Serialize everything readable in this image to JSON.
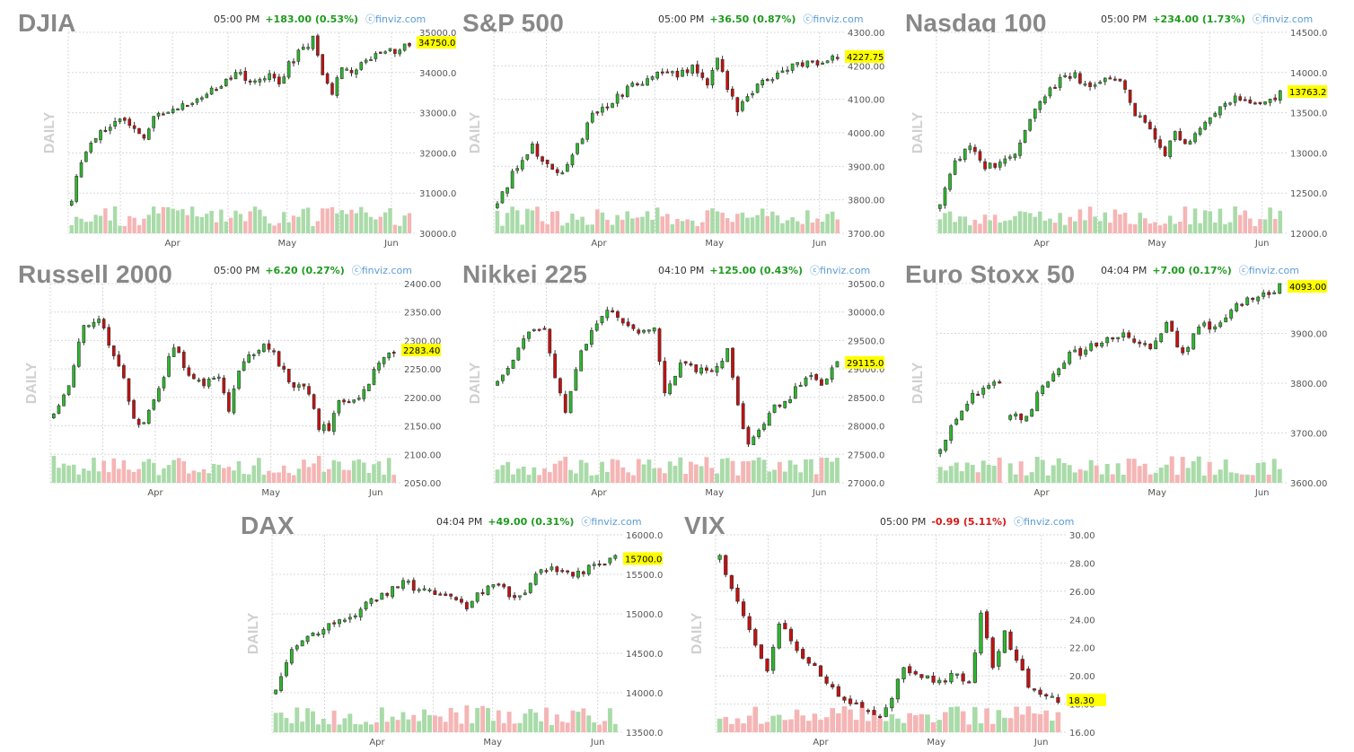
{
  "colors": {
    "up": "#2db82d",
    "down": "#c41010",
    "vol_up": "#a9dba9",
    "vol_down": "#f5b5b5",
    "last_price_bg": "#ffff00",
    "title": "#888888",
    "positive": "#1d9b1d",
    "negative": "#d71818",
    "source": "#5a9bd6"
  },
  "chart_data": [
    {
      "type": "candlestick",
      "title": "DJIA",
      "time": "05:00 PM",
      "change": "+183.00 (0.53%)",
      "direction": "up",
      "source": "finviz.com",
      "side_label": "DAILY",
      "last": "34750.0",
      "yticks": [
        "35000.0",
        "34000.0",
        "33000.0",
        "32000.0",
        "31000.0",
        "30000.0"
      ],
      "ylim": [
        30000,
        35000
      ],
      "xticks": [
        "Apr",
        "May",
        "Jun"
      ],
      "grid": true,
      "path": [
        [
          0,
          30900
        ],
        [
          2,
          31800
        ],
        [
          5,
          32400
        ],
        [
          9,
          32850
        ],
        [
          12,
          32650
        ],
        [
          15,
          32300
        ],
        [
          17,
          32900
        ],
        [
          20,
          33000
        ],
        [
          24,
          33200
        ],
        [
          28,
          33500
        ],
        [
          31,
          33650
        ],
        [
          34,
          34000
        ],
        [
          36,
          33900
        ],
        [
          38,
          33800
        ],
        [
          41,
          34000
        ],
        [
          43,
          33700
        ],
        [
          45,
          34200
        ],
        [
          48,
          34600
        ],
        [
          50,
          34850
        ],
        [
          52,
          34000
        ],
        [
          54,
          33500
        ],
        [
          56,
          34200
        ],
        [
          58,
          33900
        ],
        [
          60,
          34200
        ],
        [
          63,
          34450
        ],
        [
          66,
          34550
        ],
        [
          68,
          34500
        ],
        [
          70,
          34750
        ]
      ]
    },
    {
      "type": "candlestick",
      "title": "S&P 500",
      "time": "05:00 PM",
      "change": "+36.50 (0.87%)",
      "direction": "up",
      "source": "finviz.com",
      "side_label": "DAILY",
      "last": "4227.75",
      "yticks": [
        "4300.00",
        "4200.00",
        "4100.00",
        "4000.00",
        "3900.00",
        "3800.00",
        "3700.00"
      ],
      "ylim": [
        3700,
        4300
      ],
      "xticks": [
        "Apr",
        "May",
        "Jun"
      ],
      "grid": true,
      "path": [
        [
          0,
          3780
        ],
        [
          3,
          3880
        ],
        [
          7,
          3960
        ],
        [
          10,
          3900
        ],
        [
          13,
          3870
        ],
        [
          16,
          3960
        ],
        [
          19,
          4050
        ],
        [
          22,
          4080
        ],
        [
          26,
          4130
        ],
        [
          30,
          4160
        ],
        [
          33,
          4180
        ],
        [
          36,
          4170
        ],
        [
          39,
          4200
        ],
        [
          42,
          4150
        ],
        [
          44,
          4230
        ],
        [
          46,
          4140
        ],
        [
          48,
          4060
        ],
        [
          50,
          4110
        ],
        [
          53,
          4150
        ],
        [
          56,
          4180
        ],
        [
          59,
          4200
        ],
        [
          62,
          4210
        ],
        [
          65,
          4200
        ],
        [
          68,
          4228
        ]
      ]
    },
    {
      "type": "candlestick",
      "title": "Nasdaq 100",
      "time": "05:00 PM",
      "change": "+234.00 (1.73%)",
      "direction": "up",
      "source": "finviz.com",
      "side_label": "DAILY",
      "last": "13763.2",
      "yticks": [
        "14500.0",
        "14000.0",
        "13500.0",
        "13000.0",
        "12500.0",
        "12000.0"
      ],
      "ylim": [
        12000,
        14500
      ],
      "xticks": [
        "Apr",
        "May",
        "Jun"
      ],
      "grid": true,
      "path": [
        [
          0,
          12400
        ],
        [
          3,
          12900
        ],
        [
          6,
          13100
        ],
        [
          9,
          12800
        ],
        [
          12,
          12900
        ],
        [
          15,
          13000
        ],
        [
          18,
          13400
        ],
        [
          21,
          13700
        ],
        [
          24,
          13900
        ],
        [
          27,
          13950
        ],
        [
          30,
          13800
        ],
        [
          33,
          13950
        ],
        [
          36,
          13900
        ],
        [
          39,
          13500
        ],
        [
          42,
          13300
        ],
        [
          45,
          13000
        ],
        [
          47,
          13250
        ],
        [
          50,
          13100
        ],
        [
          53,
          13400
        ],
        [
          56,
          13600
        ],
        [
          59,
          13700
        ],
        [
          62,
          13650
        ],
        [
          65,
          13600
        ],
        [
          68,
          13763
        ]
      ]
    },
    {
      "type": "candlestick",
      "title": "Russell 2000",
      "time": "05:00 PM",
      "change": "+6.20 (0.27%)",
      "direction": "up",
      "source": "finviz.com",
      "side_label": "DAILY",
      "last": "2283.40",
      "yticks": [
        "2400.00",
        "2350.00",
        "2300.00",
        "2250.00",
        "2200.00",
        "2150.00",
        "2100.00",
        "2050.00"
      ],
      "ylim": [
        2050,
        2400
      ],
      "xticks": [
        "Apr",
        "May",
        "Jun"
      ],
      "grid": true,
      "path": [
        [
          0,
          2170
        ],
        [
          3,
          2220
        ],
        [
          6,
          2330
        ],
        [
          9,
          2340
        ],
        [
          12,
          2270
        ],
        [
          14,
          2230
        ],
        [
          16,
          2160
        ],
        [
          18,
          2150
        ],
        [
          20,
          2200
        ],
        [
          22,
          2240
        ],
        [
          24,
          2290
        ],
        [
          27,
          2240
        ],
        [
          30,
          2220
        ],
        [
          33,
          2240
        ],
        [
          35,
          2180
        ],
        [
          37,
          2250
        ],
        [
          40,
          2280
        ],
        [
          43,
          2290
        ],
        [
          45,
          2260
        ],
        [
          48,
          2220
        ],
        [
          51,
          2210
        ],
        [
          53,
          2150
        ],
        [
          55,
          2140
        ],
        [
          57,
          2200
        ],
        [
          59,
          2190
        ],
        [
          62,
          2210
        ],
        [
          65,
          2260
        ],
        [
          68,
          2283
        ]
      ]
    },
    {
      "type": "candlestick",
      "title": "Nikkei 225",
      "time": "04:10 PM",
      "change": "+125.00 (0.43%)",
      "direction": "up",
      "source": "finviz.com",
      "side_label": "DAILY",
      "last": "29115.0",
      "yticks": [
        "30500.0",
        "30000.0",
        "29500.0",
        "29000.0",
        "28500.0",
        "28000.0",
        "27500.0",
        "27000.0"
      ],
      "ylim": [
        27000,
        30500
      ],
      "xticks": [
        "Apr",
        "May",
        "Jun"
      ],
      "grid": true,
      "path": [
        [
          0,
          28800
        ],
        [
          3,
          29200
        ],
        [
          6,
          29600
        ],
        [
          9,
          29700
        ],
        [
          11,
          28800
        ],
        [
          13,
          28300
        ],
        [
          16,
          29300
        ],
        [
          19,
          29800
        ],
        [
          21,
          30100
        ],
        [
          24,
          29800
        ],
        [
          27,
          29600
        ],
        [
          30,
          29700
        ],
        [
          32,
          28600
        ],
        [
          35,
          29100
        ],
        [
          38,
          29000
        ],
        [
          41,
          28900
        ],
        [
          44,
          29300
        ],
        [
          46,
          28300
        ],
        [
          48,
          27700
        ],
        [
          50,
          27950
        ],
        [
          53,
          28300
        ],
        [
          56,
          28500
        ],
        [
          59,
          28900
        ],
        [
          62,
          28700
        ],
        [
          65,
          29115
        ]
      ]
    },
    {
      "type": "candlestick",
      "title": "Euro Stoxx 50",
      "time": "04:04 PM",
      "change": "+7.00 (0.17%)",
      "direction": "up",
      "source": "finviz.com",
      "side_label": "DAILY",
      "last": "4093.00",
      "yticks": [
        "4000.00",
        "3900.00",
        "3800.00",
        "3700.00",
        "3600.00"
      ],
      "ylim": [
        3600,
        4100
      ],
      "xticks": [
        "Apr",
        "May",
        "Jun"
      ],
      "grid": true,
      "path": [
        [
          0,
          3680
        ],
        [
          3,
          3760
        ],
        [
          6,
          3820
        ],
        [
          9,
          3840
        ],
        [
          11,
          3860
        ],
        null,
        [
          13,
          3770
        ],
        [
          16,
          3760
        ],
        [
          18,
          3820
        ],
        [
          21,
          3880
        ],
        [
          24,
          3920
        ],
        [
          27,
          3930
        ],
        [
          30,
          3960
        ],
        [
          33,
          3970
        ],
        [
          36,
          3960
        ],
        [
          39,
          3930
        ],
        [
          42,
          4000
        ],
        [
          45,
          3920
        ],
        [
          48,
          4000
        ],
        [
          51,
          3990
        ],
        [
          54,
          4030
        ],
        [
          57,
          4060
        ],
        [
          60,
          4070
        ],
        [
          63,
          4093
        ]
      ]
    },
    {
      "type": "candlestick",
      "title": "DAX",
      "time": "04:04 PM",
      "change": "+49.00 (0.31%)",
      "direction": "up",
      "source": "finviz.com",
      "side_label": "DAILY",
      "last": "15700.0",
      "yticks": [
        "16000.0",
        "15500.0",
        "15000.0",
        "14500.0",
        "14000.0",
        "13500.0"
      ],
      "ylim": [
        13500,
        16000
      ],
      "xticks": [
        "Apr",
        "May",
        "Jun"
      ],
      "grid": true,
      "path": [
        [
          0,
          14000
        ],
        [
          3,
          14500
        ],
        [
          6,
          14700
        ],
        [
          9,
          14800
        ],
        [
          12,
          14900
        ],
        [
          15,
          15000
        ],
        [
          18,
          15200
        ],
        [
          21,
          15250
        ],
        [
          24,
          15400
        ],
        [
          27,
          15300
        ],
        [
          30,
          15280
        ],
        [
          33,
          15250
        ],
        [
          36,
          15100
        ],
        [
          39,
          15300
        ],
        [
          42,
          15400
        ],
        [
          44,
          15200
        ],
        [
          46,
          15200
        ],
        [
          49,
          15500
        ],
        [
          52,
          15550
        ],
        [
          55,
          15500
        ],
        [
          58,
          15550
        ],
        [
          61,
          15600
        ],
        [
          64,
          15700
        ]
      ]
    },
    {
      "type": "candlestick",
      "title": "VIX",
      "time": "05:00 PM",
      "change": "-0.99 (5.11%)",
      "direction": "down",
      "source": "finviz.com",
      "side_label": "DAILY",
      "last": "18.30",
      "yticks": [
        "30.00",
        "28.00",
        "26.00",
        "24.00",
        "22.00",
        "20.00",
        "18.00",
        "16.00"
      ],
      "ylim": [
        16,
        30
      ],
      "xticks": [
        "Apr",
        "May",
        "Jun"
      ],
      "grid": true,
      "path": [
        [
          0,
          28500
        ],
        [
          2,
          26000
        ],
        [
          4,
          24500
        ],
        [
          6,
          22000
        ],
        [
          8,
          20500
        ],
        [
          10,
          23800
        ],
        [
          12,
          22500
        ],
        [
          14,
          21500
        ],
        [
          16,
          20500
        ],
        [
          19,
          19200
        ],
        [
          22,
          18000
        ],
        [
          25,
          17500
        ],
        [
          27,
          17300
        ],
        [
          29,
          18500
        ],
        [
          31,
          20500
        ],
        [
          34,
          20000
        ],
        [
          37,
          19700
        ],
        [
          40,
          20200
        ],
        [
          42,
          19300
        ],
        [
          44,
          24500
        ],
        [
          46,
          20800
        ],
        [
          48,
          23000
        ],
        [
          50,
          21000
        ],
        [
          52,
          19300
        ],
        [
          55,
          18800
        ],
        [
          57,
          18300
        ]
      ]
    }
  ]
}
